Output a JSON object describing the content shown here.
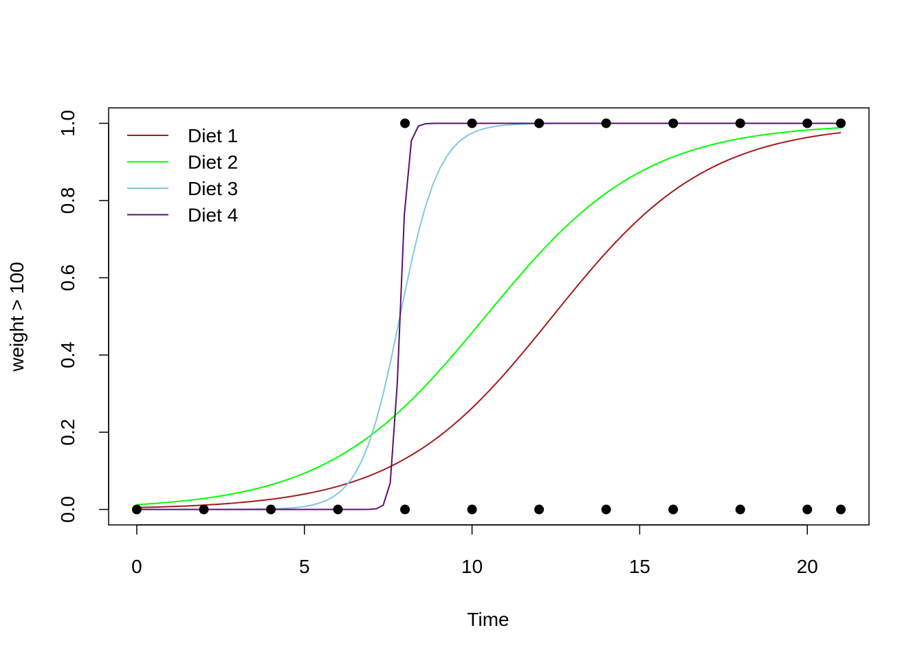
{
  "chart_data": {
    "type": "line",
    "xlabel": "Time",
    "ylabel": "weight > 100",
    "xlim": [
      -0.84,
      21.84
    ],
    "ylim": [
      -0.04,
      1.04
    ],
    "x_ticks": [
      0,
      5,
      10,
      15,
      20
    ],
    "y_ticks": [
      0.0,
      0.2,
      0.4,
      0.6,
      0.8,
      1.0
    ],
    "x_tick_labels": [
      "0",
      "5",
      "10",
      "15",
      "20"
    ],
    "y_tick_labels": [
      "0.0",
      "0.2",
      "0.4",
      "0.6",
      "0.8",
      "1.0"
    ],
    "grid": false,
    "legend_position": "top-left",
    "x_range": [
      0,
      21
    ],
    "series": [
      {
        "name": "Diet 1",
        "color": "#A3191C",
        "model": "logistic",
        "midpoint": 12.4,
        "slope": 0.43
      },
      {
        "name": "Diet 2",
        "color": "#00FF00",
        "model": "logistic",
        "midpoint": 10.4,
        "slope": 0.42
      },
      {
        "name": "Diet 3",
        "color": "#7EC8E3",
        "model": "logistic",
        "midpoint": 7.85,
        "slope": 1.7
      },
      {
        "name": "Diet 4",
        "color": "#5A0F6E",
        "model": "logistic",
        "midpoint": 7.85,
        "slope": 9.0
      }
    ],
    "points": {
      "color": "#000000",
      "x": [
        0,
        2,
        4,
        6,
        8,
        10,
        12,
        14,
        16,
        18,
        20,
        21,
        8,
        10,
        12,
        14,
        16,
        18,
        20,
        21
      ],
      "y": [
        0,
        0,
        0,
        0,
        0,
        0,
        0,
        0,
        0,
        0,
        0,
        0,
        1,
        1,
        1,
        1,
        1,
        1,
        1,
        1
      ]
    }
  }
}
